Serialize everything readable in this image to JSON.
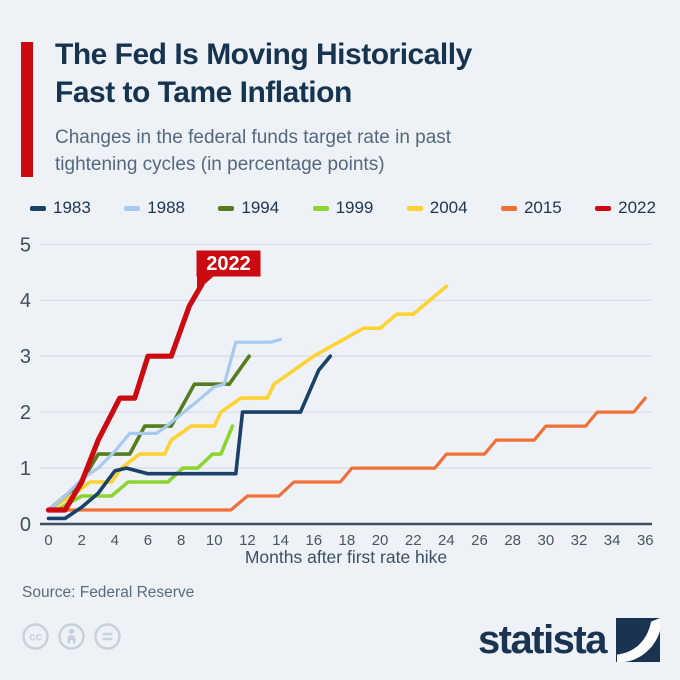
{
  "header": {
    "title_line1": "The Fed Is Moving Historically",
    "title_line2": "Fast to Tame Inflation",
    "subtitle_line1": "Changes in the federal funds target rate in past",
    "subtitle_line2": "tightening cycles (in percentage points)"
  },
  "colors": {
    "background": "#eef2f7",
    "accent_red": "#cb0b0f",
    "title_text": "#17344f",
    "subtitle_text": "#54687d",
    "legend_text": "#203750",
    "grid_line": "#d8dee5",
    "axis_line": "#3f4f5d",
    "tick_text": "#47565f",
    "y_tick_text": "#3e4e5d",
    "axis_title_text": "#3c5064",
    "source_text": "#5a6b7c",
    "license_icon": "#c7d0db",
    "brand_navy": "#1a3350"
  },
  "legend": [
    {
      "label": "1983",
      "color": "#1b4168"
    },
    {
      "label": "1988",
      "color": "#a6cbee"
    },
    {
      "label": "1994",
      "color": "#557d20"
    },
    {
      "label": "1999",
      "color": "#8ed431"
    },
    {
      "label": "2004",
      "color": "#fdd232"
    },
    {
      "label": "2015",
      "color": "#f07038"
    },
    {
      "label": "2022",
      "color": "#cb0b0f"
    }
  ],
  "chart_data": {
    "type": "line",
    "title": "Changes in the federal funds target rate in past tightening cycles (in percentage points)",
    "xlabel": "Months after first rate hike",
    "ylabel": "",
    "xlim": [
      0,
      36
    ],
    "ylim": [
      0,
      5
    ],
    "x_ticks": [
      0,
      2,
      4,
      6,
      8,
      10,
      12,
      14,
      16,
      18,
      20,
      22,
      24,
      26,
      28,
      30,
      32,
      34,
      36
    ],
    "y_ticks": [
      0,
      1,
      2,
      3,
      4,
      5
    ],
    "grid": "horizontal",
    "legend_position": "top",
    "annotation": {
      "text": "2022",
      "x": 9.3,
      "y": 4.3
    },
    "draw_order": [
      "2015",
      "2004",
      "1999",
      "1994",
      "1988",
      "1983",
      "2022"
    ],
    "series": [
      {
        "name": "1983",
        "color": "#1b4168",
        "width": 3.6,
        "points": [
          [
            0,
            0.1
          ],
          [
            1,
            0.1
          ],
          [
            2,
            0.3
          ],
          [
            3,
            0.55
          ],
          [
            4,
            0.95
          ],
          [
            4.7,
            1.0
          ],
          [
            6,
            0.9
          ],
          [
            11.3,
            0.9
          ],
          [
            11.7,
            2.0
          ],
          [
            15.2,
            2.0
          ],
          [
            16.3,
            2.75
          ],
          [
            17,
            3.0
          ]
        ]
      },
      {
        "name": "1988",
        "color": "#a6cbee",
        "width": 3.2,
        "points": [
          [
            0,
            0.25
          ],
          [
            1,
            0.5
          ],
          [
            2,
            0.8
          ],
          [
            3,
            1.0
          ],
          [
            4,
            1.3
          ],
          [
            4.9,
            1.62
          ],
          [
            6.5,
            1.62
          ],
          [
            7,
            1.72
          ],
          [
            9,
            2.2
          ],
          [
            10,
            2.45
          ],
          [
            10.6,
            2.5
          ],
          [
            11.3,
            3.25
          ],
          [
            13.4,
            3.25
          ],
          [
            14,
            3.3
          ]
        ]
      },
      {
        "name": "1994",
        "color": "#557d20",
        "width": 3.6,
        "points": [
          [
            0,
            0.25
          ],
          [
            1,
            0.5
          ],
          [
            2,
            0.75
          ],
          [
            3,
            1.25
          ],
          [
            4.9,
            1.25
          ],
          [
            5.8,
            1.75
          ],
          [
            7.4,
            1.75
          ],
          [
            8.8,
            2.5
          ],
          [
            10.9,
            2.5
          ],
          [
            12.1,
            3.0
          ]
        ]
      },
      {
        "name": "1999",
        "color": "#8ed431",
        "width": 3.6,
        "points": [
          [
            0,
            0.25
          ],
          [
            0.5,
            0.25
          ],
          [
            2,
            0.5
          ],
          [
            3.8,
            0.5
          ],
          [
            4.8,
            0.75
          ],
          [
            7.2,
            0.75
          ],
          [
            8.1,
            1.0
          ],
          [
            9,
            1.0
          ],
          [
            9.9,
            1.25
          ],
          [
            10.4,
            1.25
          ],
          [
            11.1,
            1.75
          ]
        ]
      },
      {
        "name": "2004",
        "color": "#fdd232",
        "width": 3.6,
        "points": [
          [
            0,
            0.25
          ],
          [
            1.4,
            0.5
          ],
          [
            2.5,
            0.75
          ],
          [
            3.8,
            0.75
          ],
          [
            4.4,
            1.0
          ],
          [
            5.5,
            1.25
          ],
          [
            7,
            1.25
          ],
          [
            7.4,
            1.5
          ],
          [
            8.6,
            1.75
          ],
          [
            10,
            1.75
          ],
          [
            10.4,
            2.0
          ],
          [
            11.6,
            2.25
          ],
          [
            13.2,
            2.25
          ],
          [
            13.6,
            2.5
          ],
          [
            14.8,
            2.75
          ],
          [
            16,
            3.0
          ],
          [
            17.5,
            3.25
          ],
          [
            19,
            3.5
          ],
          [
            20,
            3.5
          ],
          [
            21,
            3.75
          ],
          [
            22,
            3.75
          ],
          [
            24,
            4.25
          ]
        ]
      },
      {
        "name": "2015",
        "color": "#f07038",
        "width": 3.2,
        "points": [
          [
            0,
            0.25
          ],
          [
            11,
            0.25
          ],
          [
            12,
            0.5
          ],
          [
            13.9,
            0.5
          ],
          [
            14.8,
            0.75
          ],
          [
            17.6,
            0.75
          ],
          [
            18.3,
            1.0
          ],
          [
            23.3,
            1.0
          ],
          [
            24,
            1.25
          ],
          [
            26.3,
            1.25
          ],
          [
            27,
            1.5
          ],
          [
            29.3,
            1.5
          ],
          [
            30,
            1.75
          ],
          [
            32.4,
            1.75
          ],
          [
            33.1,
            2.0
          ],
          [
            35.3,
            2.0
          ],
          [
            36,
            2.25
          ]
        ]
      },
      {
        "name": "2022",
        "color": "#cb0b0f",
        "width": 5.2,
        "points": [
          [
            0,
            0.25
          ],
          [
            1,
            0.25
          ],
          [
            2,
            0.75
          ],
          [
            3,
            1.5
          ],
          [
            4.3,
            2.25
          ],
          [
            5.2,
            2.25
          ],
          [
            6,
            3.0
          ],
          [
            7.4,
            3.0
          ],
          [
            8.5,
            3.9
          ],
          [
            9.25,
            4.28
          ]
        ]
      }
    ]
  },
  "footer": {
    "source": "Source: Federal Reserve",
    "brand_wordmark": "statista",
    "license_icons": [
      "cc-icon",
      "attribution-icon",
      "equal-icon"
    ]
  }
}
